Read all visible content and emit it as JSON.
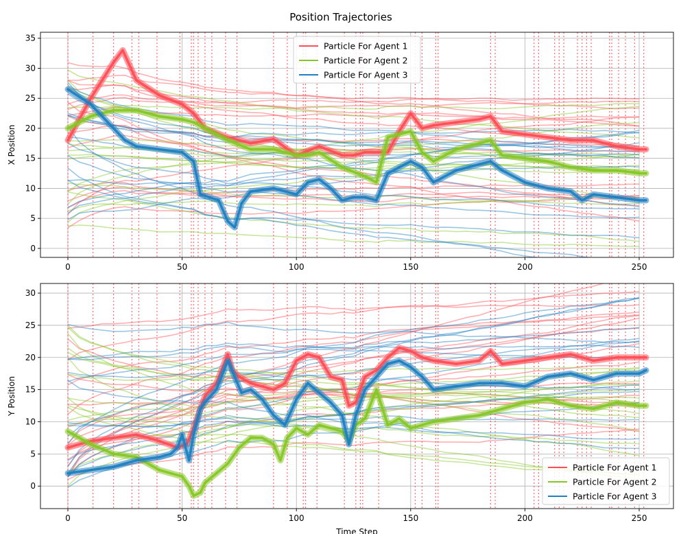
{
  "figure": {
    "title": "Position Trajectories"
  },
  "colors": {
    "agent1": "#ff4d55",
    "agent2": "#86c726",
    "agent3": "#1f7fc1",
    "vline": "#ff4d55",
    "grid": "#b0b0b0"
  },
  "legend": {
    "items": [
      "Particle For Agent 1",
      "Particle For Agent 2",
      "Particle For Agent 3"
    ]
  },
  "chart_data": [
    {
      "type": "line",
      "ylabel": "X Position",
      "xlabel": "",
      "xlim": [
        -12,
        265
      ],
      "ylim": [
        -1.5,
        36
      ],
      "xticks": [
        0,
        50,
        100,
        150,
        200,
        250
      ],
      "yticks": [
        0,
        5,
        10,
        15,
        20,
        25,
        30,
        35
      ],
      "grid": true,
      "legend_position": "upper-center",
      "event_steps": [
        0,
        11,
        20,
        28,
        31,
        39,
        49,
        54,
        55,
        57,
        60,
        63,
        69,
        74,
        90,
        96,
        103,
        104,
        109,
        121,
        126,
        128,
        129,
        136,
        152,
        155,
        161,
        162,
        185,
        187,
        204,
        206,
        213,
        215,
        217,
        223,
        225,
        227,
        229,
        237,
        238,
        241,
        244,
        248,
        252
      ],
      "series": [
        {
          "name": "Particle For Agent 1",
          "x": [
            0,
            10,
            20,
            24,
            30,
            40,
            50,
            55,
            60,
            70,
            80,
            90,
            100,
            110,
            120,
            125,
            130,
            140,
            145,
            150,
            155,
            160,
            170,
            180,
            185,
            190,
            200,
            210,
            220,
            230,
            240,
            250,
            253
          ],
          "values": [
            18,
            25,
            31,
            33,
            28,
            25.5,
            24,
            22.5,
            20,
            18.5,
            17.5,
            18.2,
            15.5,
            17,
            15.5,
            15.5,
            16,
            16,
            19.5,
            22.5,
            20,
            20.5,
            21,
            21.5,
            22,
            19.5,
            19,
            18.5,
            18,
            18,
            17,
            16.5,
            16.5
          ]
        },
        {
          "name": "Particle For Agent 2",
          "x": [
            0,
            10,
            20,
            30,
            40,
            50,
            55,
            60,
            70,
            80,
            90,
            100,
            105,
            110,
            120,
            130,
            135,
            140,
            145,
            150,
            155,
            160,
            170,
            180,
            185,
            190,
            200,
            210,
            220,
            230,
            240,
            250,
            253
          ],
          "values": [
            20,
            22,
            23,
            23,
            22,
            21.5,
            21,
            20,
            18,
            16.5,
            16.5,
            15.5,
            15.5,
            16,
            13.5,
            12,
            11,
            18.5,
            19,
            19.5,
            16,
            14.5,
            16.5,
            17.5,
            18,
            15.5,
            15,
            14.5,
            13.5,
            13,
            13,
            12.5,
            12.5
          ]
        },
        {
          "name": "Particle For Agent 3",
          "x": [
            0,
            10,
            20,
            25,
            30,
            40,
            50,
            55,
            58,
            62,
            66,
            70,
            73,
            76,
            80,
            90,
            100,
            105,
            110,
            115,
            120,
            125,
            130,
            135,
            140,
            145,
            150,
            155,
            160,
            170,
            180,
            185,
            190,
            200,
            210,
            220,
            225,
            230,
            240,
            250,
            253
          ],
          "values": [
            26.5,
            24,
            20,
            18,
            17,
            16.5,
            16,
            14.5,
            9,
            8.5,
            8,
            4.5,
            3.5,
            7.5,
            9.5,
            10,
            9,
            11,
            11.5,
            10,
            8,
            8.5,
            8.5,
            8,
            12.5,
            13.5,
            14.5,
            13.5,
            11,
            13,
            14,
            14.5,
            13,
            11,
            10,
            9.5,
            8,
            9,
            8.5,
            8,
            8
          ]
        }
      ]
    },
    {
      "type": "line",
      "ylabel": "Y Position",
      "xlabel": "Time Step",
      "xlim": [
        -12,
        265
      ],
      "ylim": [
        -3.5,
        31.5
      ],
      "xticks": [
        0,
        50,
        100,
        150,
        200,
        250
      ],
      "yticks": [
        0,
        5,
        10,
        15,
        20,
        25,
        30
      ],
      "grid": true,
      "legend_position": "lower-right",
      "event_steps": [
        0,
        11,
        20,
        28,
        31,
        39,
        49,
        54,
        55,
        57,
        60,
        63,
        69,
        74,
        90,
        96,
        103,
        104,
        109,
        121,
        126,
        128,
        129,
        136,
        152,
        155,
        161,
        162,
        185,
        187,
        204,
        206,
        213,
        215,
        217,
        223,
        225,
        227,
        229,
        237,
        238,
        241,
        244,
        248,
        252
      ],
      "series": [
        {
          "name": "Particle For Agent 1",
          "x": [
            0,
            10,
            20,
            30,
            40,
            48,
            52,
            55,
            60,
            65,
            70,
            72,
            75,
            80,
            90,
            95,
            100,
            105,
            110,
            115,
            120,
            123,
            126,
            130,
            135,
            140,
            145,
            150,
            155,
            160,
            170,
            180,
            185,
            190,
            200,
            210,
            220,
            230,
            240,
            250,
            253
          ],
          "values": [
            6,
            7,
            7.5,
            8,
            7,
            6,
            6.5,
            9,
            14,
            16,
            20.5,
            18,
            17,
            16,
            15,
            16,
            19.5,
            20.5,
            20,
            17,
            16.5,
            12.5,
            13,
            17,
            18,
            20,
            21.5,
            21,
            20,
            19.5,
            19,
            19.5,
            21,
            19,
            19.5,
            20,
            20.5,
            19.5,
            20,
            20,
            20
          ]
        },
        {
          "name": "Particle For Agent 2",
          "x": [
            0,
            10,
            20,
            30,
            40,
            45,
            50,
            53,
            55,
            58,
            60,
            65,
            70,
            75,
            80,
            85,
            90,
            93,
            96,
            100,
            105,
            110,
            115,
            120,
            123,
            126,
            130,
            135,
            140,
            145,
            150,
            155,
            160,
            170,
            180,
            190,
            200,
            210,
            220,
            230,
            240,
            250,
            253
          ],
          "values": [
            8.5,
            6.5,
            5,
            4.5,
            2.5,
            2,
            1.5,
            0,
            -1.5,
            -1,
            0.5,
            2,
            3.5,
            6,
            7.5,
            7.5,
            6.5,
            4,
            7.5,
            9,
            8,
            9.5,
            9,
            8.5,
            7,
            9.5,
            10.5,
            15,
            9.5,
            10.5,
            9,
            9.5,
            10,
            10.5,
            11,
            12,
            13,
            13.5,
            12.5,
            12,
            13,
            12.5,
            12.5
          ]
        },
        {
          "name": "Particle For Agent 3",
          "x": [
            0,
            10,
            20,
            30,
            40,
            45,
            48,
            50,
            53,
            55,
            58,
            60,
            65,
            70,
            73,
            76,
            80,
            85,
            90,
            95,
            100,
            105,
            110,
            115,
            120,
            123,
            126,
            130,
            135,
            140,
            145,
            150,
            155,
            160,
            170,
            180,
            190,
            200,
            210,
            220,
            230,
            240,
            250,
            253
          ],
          "values": [
            2,
            2.5,
            3,
            4,
            4.5,
            5,
            6,
            8,
            4,
            8,
            12,
            13,
            15,
            19.5,
            17,
            14.5,
            15,
            13.5,
            11,
            9.5,
            13.5,
            16,
            14.5,
            13,
            11,
            6.5,
            11,
            15,
            17,
            19,
            19.5,
            18.5,
            17,
            15,
            15.5,
            16,
            16,
            15.5,
            17,
            17.5,
            16.5,
            17.5,
            17.5,
            18
          ]
        }
      ]
    }
  ]
}
